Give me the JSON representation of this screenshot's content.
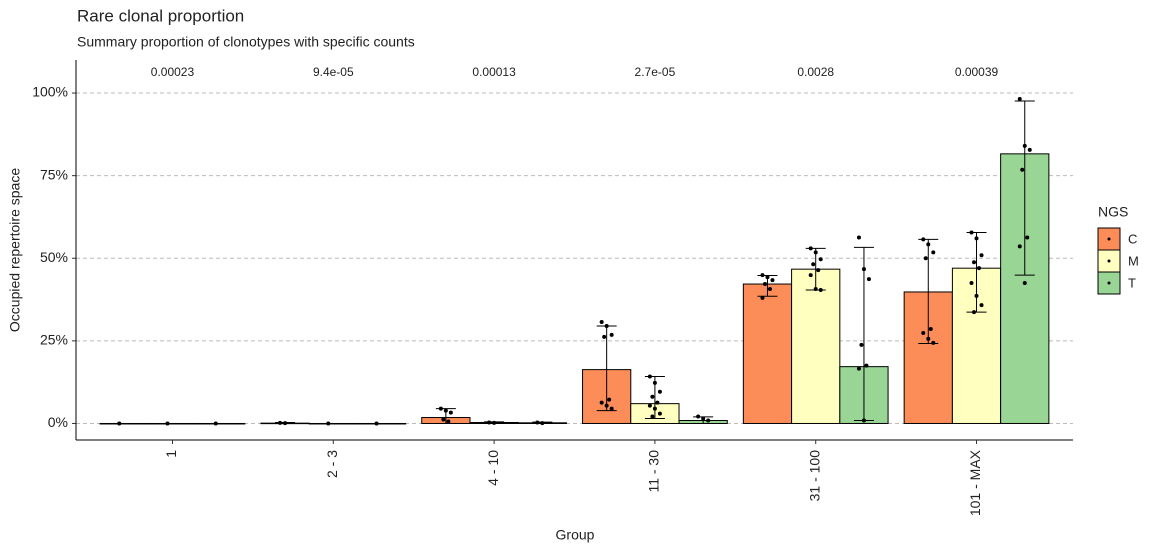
{
  "chart_data": {
    "type": "bar",
    "title": "Rare clonal proportion",
    "subtitle": "Summary proportion of clonotypes with specific counts",
    "x_label": "Group",
    "y_label": "Occupied repertoire space",
    "categories": [
      "1",
      "2 - 3",
      "4 - 10",
      "11 - 30",
      "31 - 100",
      "101 - MAX"
    ],
    "annotations": [
      "0.00023",
      "9.4e-05",
      "0.00013",
      "2.7e-05",
      "0.0028",
      "0.00039"
    ],
    "ylim": [
      -5,
      110
    ],
    "yticks": [
      {
        "value": 0,
        "label": "0%"
      },
      {
        "value": 25,
        "label": "25%"
      },
      {
        "value": 50,
        "label": "50%"
      },
      {
        "value": 75,
        "label": "75%"
      },
      {
        "value": 100,
        "label": "100%"
      }
    ],
    "grid": true,
    "legend_title": "NGS",
    "legend_position": "right",
    "series": [
      {
        "name": "C",
        "color": "#FC8D59",
        "values": [
          0,
          0.1,
          1.8,
          16.3,
          42.2,
          39.8
        ],
        "err_low": [
          0,
          0,
          0,
          3.9,
          38.5,
          24.2
        ],
        "err_high": [
          0,
          0.3,
          4.5,
          29.5,
          44.8,
          55.7
        ],
        "points": [
          [
            0
          ],
          [
            0.2,
            0.1
          ],
          [
            4.5,
            3.9,
            3.3,
            1.2,
            0.6
          ],
          [
            30.7,
            29.5,
            26.8,
            26.2,
            7.2,
            6.3,
            5.4,
            4.5
          ],
          [
            44.9,
            44.3,
            43.4,
            42.2,
            40.7,
            38.0
          ],
          [
            55.7,
            54.2,
            51.8,
            50.0,
            28.6,
            27.4,
            25.6,
            24.4
          ]
        ]
      },
      {
        "name": "M",
        "color": "#FFFFBF",
        "values": [
          0,
          0,
          0.3,
          6.0,
          46.7,
          47.0
        ],
        "err_low": [
          0,
          0,
          0,
          1.5,
          40.4,
          33.7
        ],
        "err_high": [
          0,
          0,
          0.5,
          14.2,
          53.0,
          57.8
        ],
        "points": [
          [
            0
          ],
          [
            0
          ],
          [
            0.3,
            0.2
          ],
          [
            14.2,
            12.3,
            9.6,
            8.1,
            6.3,
            5.4,
            4.5,
            3.0,
            2.1
          ],
          [
            53.0,
            51.8,
            49.7,
            48.2,
            46.4,
            44.9,
            40.7,
            40.4
          ],
          [
            57.8,
            56.0,
            50.9,
            48.8,
            47.0,
            42.5,
            38.6,
            35.8,
            33.7
          ]
        ]
      },
      {
        "name": "T",
        "color": "#99D594",
        "values": [
          0,
          0,
          0.2,
          0.9,
          17.2,
          81.6
        ],
        "err_low": [
          0,
          0,
          0,
          0,
          0.9,
          44.9
        ],
        "err_high": [
          0,
          0,
          0.4,
          2.0,
          53.3,
          97.6
        ],
        "points": [
          [
            0
          ],
          [
            0
          ],
          [
            0.3,
            0.1
          ],
          [
            2.1,
            1.5,
            0.9
          ],
          [
            56.3,
            46.7,
            43.7,
            23.8,
            17.5,
            16.6,
            0.9
          ],
          [
            98.2,
            84.0,
            82.8,
            76.8,
            56.3,
            53.6,
            42.5
          ]
        ]
      }
    ]
  }
}
